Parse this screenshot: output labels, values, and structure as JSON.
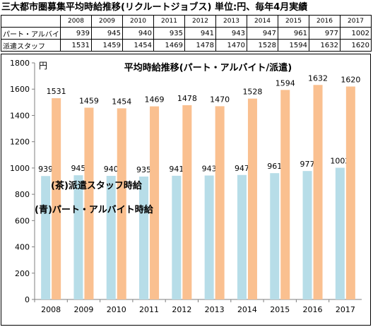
{
  "header": {
    "title": "三大都市圏募集平均時給推移(リクルートジョブス) 単位:円、毎年4月実績"
  },
  "table": {
    "years": [
      "2008",
      "2009",
      "2010",
      "2011",
      "2012",
      "2013",
      "2014",
      "2015",
      "2016",
      "2017"
    ],
    "rows": [
      {
        "label": "パート・アルバイト",
        "values": [
          "939",
          "945",
          "940",
          "935",
          "941",
          "943",
          "947",
          "961",
          "977",
          "1002"
        ]
      },
      {
        "label": "派遣スタッフ",
        "values": [
          "1531",
          "1459",
          "1454",
          "1469",
          "1478",
          "1470",
          "1528",
          "1594",
          "1632",
          "1620"
        ]
      }
    ]
  },
  "chart_data": {
    "type": "bar",
    "title": "平均時給推移(パート・アルバイト/派遣)",
    "ylabel": "円",
    "xlabel": "",
    "categories": [
      "2008",
      "2009",
      "2010",
      "2011",
      "2012",
      "2013",
      "2014",
      "2015",
      "2016",
      "2017"
    ],
    "ylim": [
      0,
      1800
    ],
    "yticks": [
      0,
      200,
      400,
      600,
      800,
      1000,
      1200,
      1400,
      1600,
      1800
    ],
    "grid": false,
    "series": [
      {
        "name": "(青)パート・アルバイト時給",
        "color": "#b7dde8",
        "values": [
          939,
          945,
          940,
          935,
          941,
          943,
          947,
          961,
          977,
          1002
        ]
      },
      {
        "name": "(茶)派遣スタッフ時給",
        "color": "#fac090",
        "values": [
          1531,
          1459,
          1454,
          1469,
          1478,
          1470,
          1528,
          1594,
          1632,
          1620
        ]
      }
    ],
    "data_labels": true
  }
}
